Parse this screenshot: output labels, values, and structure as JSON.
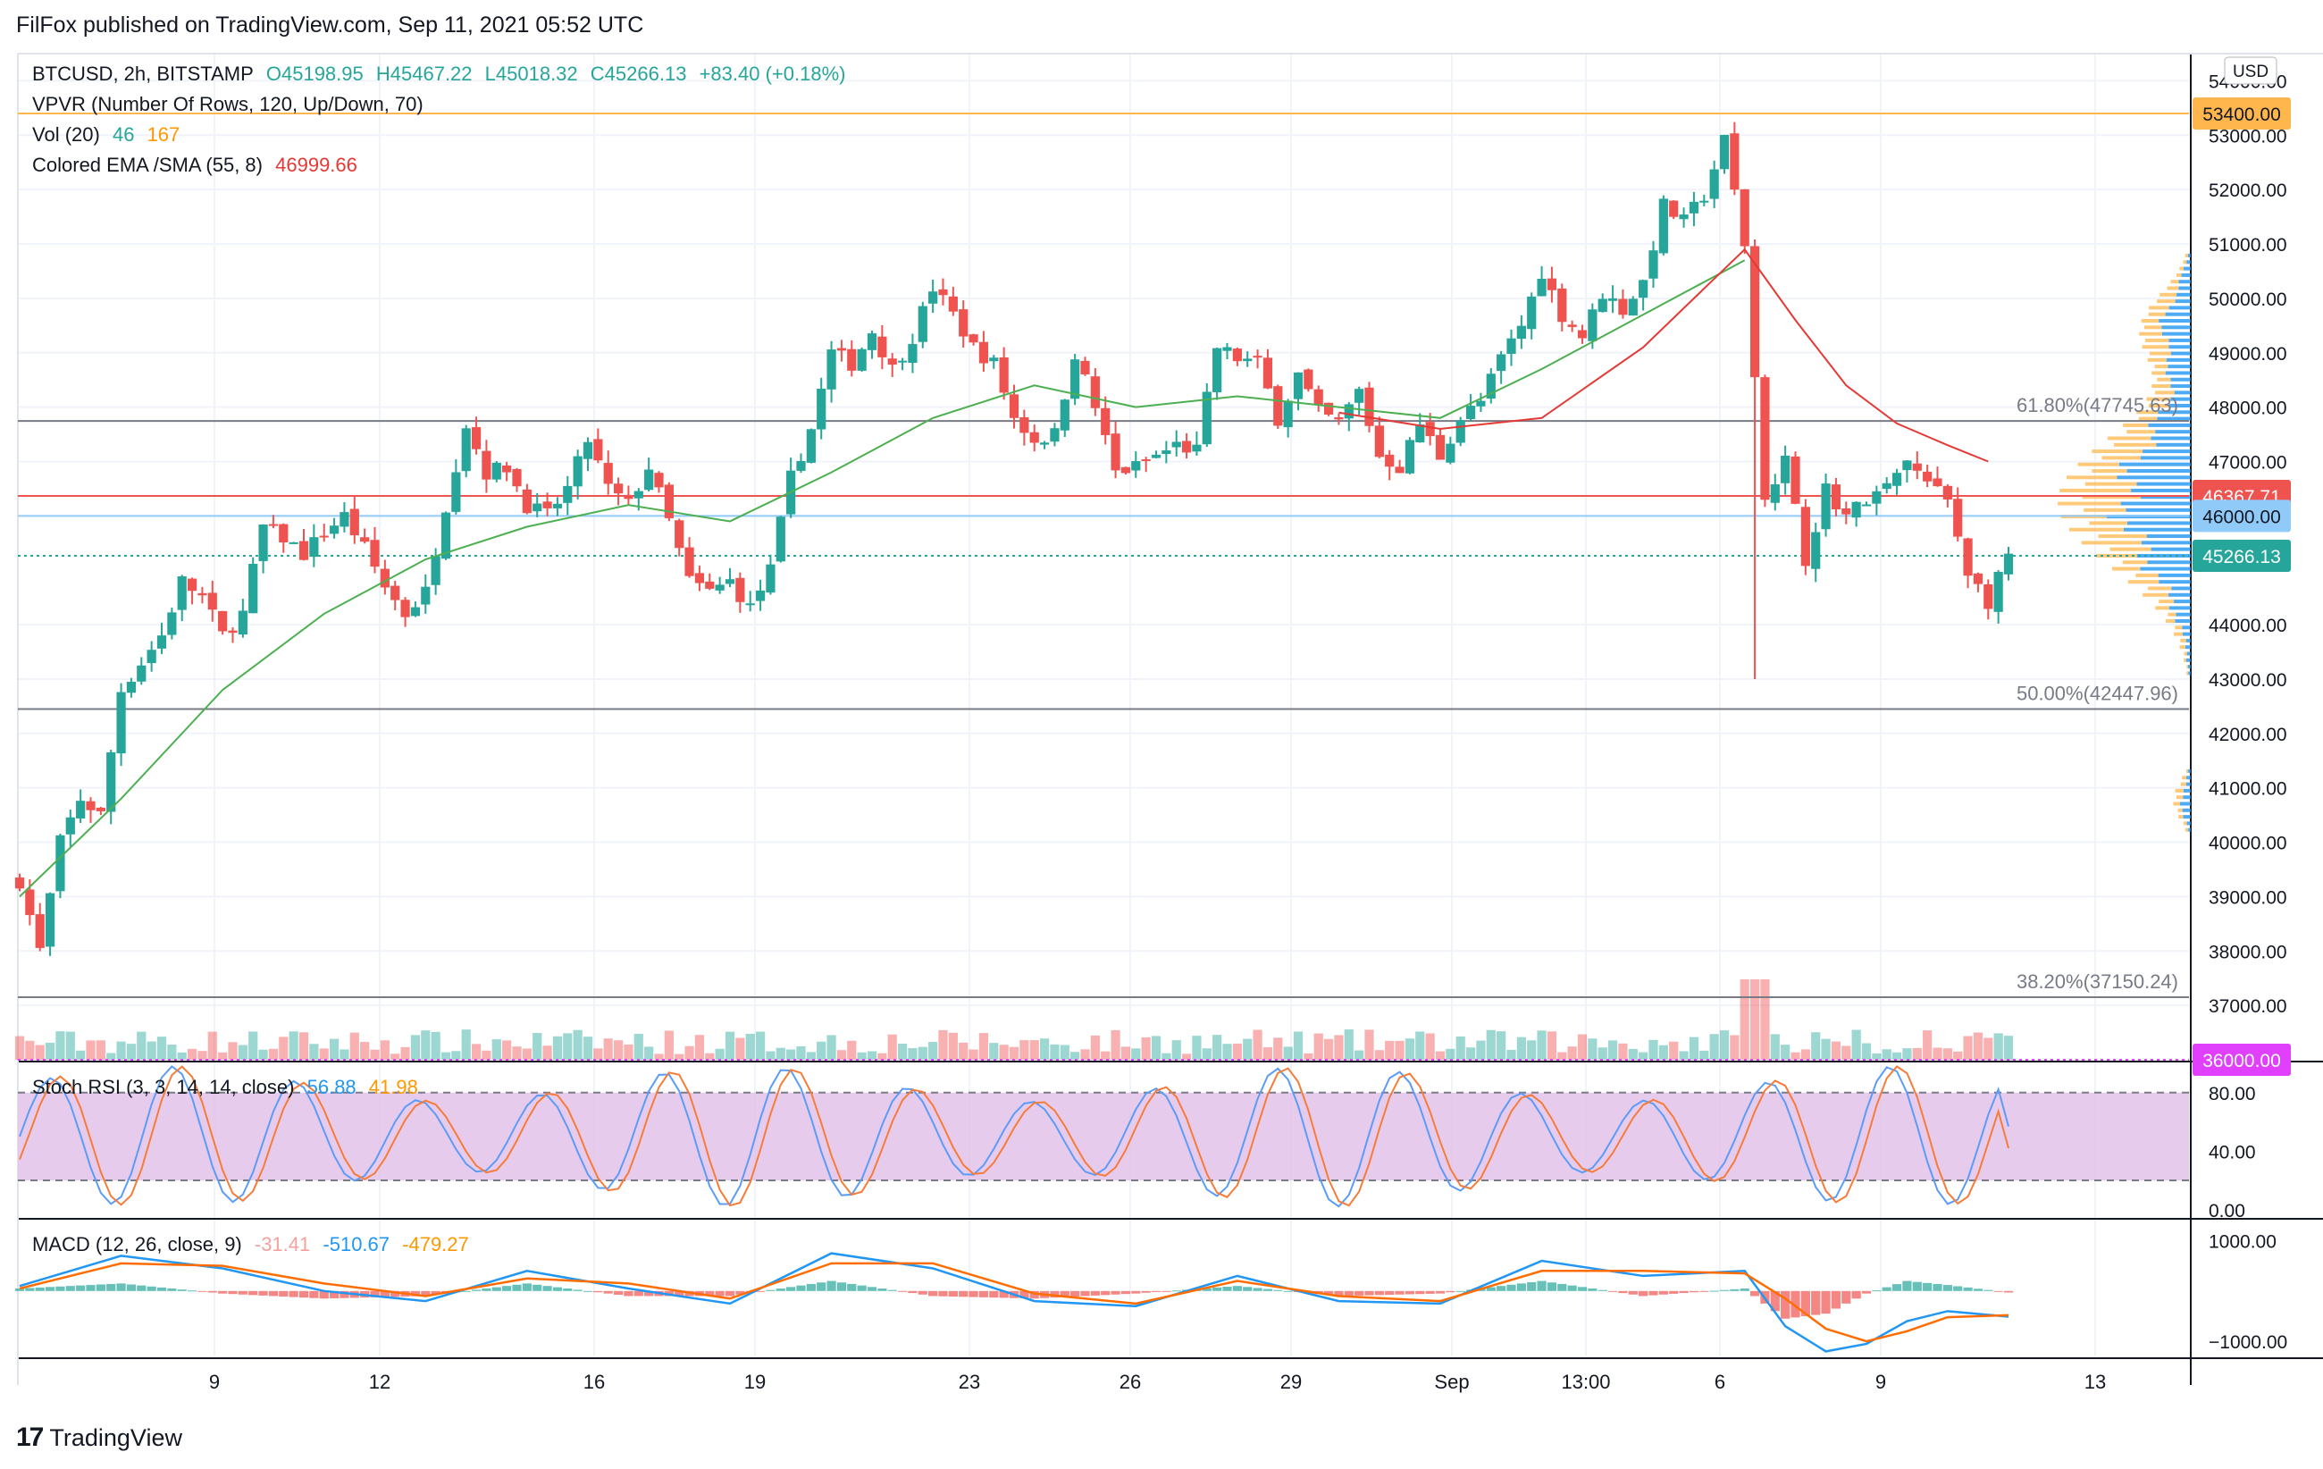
{
  "header": {
    "publish_line": "FilFox published on TradingView.com, Sep 11, 2021 05:52 UTC"
  },
  "footer": {
    "logo_mark": "17",
    "brand": "TradingView"
  },
  "legend": {
    "symbol": "BTCUSD, 2h, BITSTAMP",
    "open": "O45198.95",
    "high": "H45467.22",
    "low": "L45018.32",
    "close": "C45266.13",
    "change": "+83.40 (+0.18%)",
    "vpvr": "VPVR (Number Of Rows, 120, Up/Down, 70)",
    "vol_label": "Vol (20)",
    "vol_value": "46",
    "vol_ma": "167",
    "ema_label": "Colored EMA /SMA (55, 8)",
    "ema_value": "46999.66",
    "stoch_label": "Stoch RSI (3, 3, 14, 14, close)",
    "stoch_k": "56.88",
    "stoch_d": "41.98",
    "macd_label": "MACD (12, 26, close, 9)",
    "macd_hist": "-31.41",
    "macd_line": "-510.67",
    "macd_signal": "-479.27"
  },
  "colors": {
    "up": "#26a69a",
    "down": "#ef5350",
    "ema": "#e53935",
    "sma": "#4caf50",
    "stoch_k": "#5b9cf6",
    "stoch_d": "#f57c3a",
    "stoch_band": "#e1bee7",
    "macd_line": "#2196f3",
    "macd_signal": "#ff6d00",
    "vpvr_up": "#2196f3",
    "vpvr_down": "#ffb74d",
    "fib_line": "#787b86"
  },
  "chart_data": {
    "type": "candlestick",
    "symbol": "BTCUSD",
    "interval": "2h",
    "exchange": "BITSTAMP",
    "currency": "USD",
    "ylim": [
      36000,
      54500
    ],
    "y_ticks": [
      {
        "value": 37000,
        "label": "37000.00"
      },
      {
        "value": 38000,
        "label": "38000.00"
      },
      {
        "value": 39000,
        "label": "39000.00"
      },
      {
        "value": 40000,
        "label": "40000.00"
      },
      {
        "value": 41000,
        "label": "41000.00"
      },
      {
        "value": 42000,
        "label": "42000.00"
      },
      {
        "value": 43000,
        "label": "43000.00"
      },
      {
        "value": 44000,
        "label": "44000.00"
      },
      {
        "value": 47000,
        "label": "47000.00"
      },
      {
        "value": 48000,
        "label": "48000.00"
      },
      {
        "value": 49000,
        "label": "49000.00"
      },
      {
        "value": 50000,
        "label": "50000.00"
      },
      {
        "value": 51000,
        "label": "51000.00"
      },
      {
        "value": 52000,
        "label": "52000.00"
      },
      {
        "value": 53000,
        "label": "53000.00"
      },
      {
        "value": 54000,
        "label": "54000.00"
      }
    ],
    "x_ticks": [
      "9",
      "12",
      "16",
      "19",
      "23",
      "26",
      "29",
      "Sep",
      "13:00",
      "6",
      "9",
      "13"
    ],
    "price_path": [
      [
        0,
        39300
      ],
      [
        2,
        38000
      ],
      [
        4,
        40000
      ],
      [
        6,
        40800
      ],
      [
        8,
        40500
      ],
      [
        10,
        42800
      ],
      [
        12,
        43300
      ],
      [
        14,
        43800
      ],
      [
        16,
        44800
      ],
      [
        18,
        44500
      ],
      [
        20,
        43800
      ],
      [
        22,
        44200
      ],
      [
        24,
        45800
      ],
      [
        26,
        45600
      ],
      [
        28,
        45300
      ],
      [
        30,
        45700
      ],
      [
        32,
        46000
      ],
      [
        34,
        45400
      ],
      [
        36,
        44700
      ],
      [
        38,
        44200
      ],
      [
        40,
        44600
      ],
      [
        42,
        46200
      ],
      [
        44,
        47700
      ],
      [
        46,
        46800
      ],
      [
        48,
        46900
      ],
      [
        50,
        46200
      ],
      [
        52,
        46000
      ],
      [
        54,
        46500
      ],
      [
        56,
        47400
      ],
      [
        58,
        46500
      ],
      [
        60,
        46200
      ],
      [
        62,
        46900
      ],
      [
        64,
        45900
      ],
      [
        66,
        44800
      ],
      [
        68,
        44600
      ],
      [
        70,
        44800
      ],
      [
        72,
        44300
      ],
      [
        74,
        45000
      ],
      [
        76,
        46700
      ],
      [
        78,
        47600
      ],
      [
        80,
        49000
      ],
      [
        82,
        48800
      ],
      [
        84,
        49400
      ],
      [
        86,
        48700
      ],
      [
        88,
        49300
      ],
      [
        90,
        50200
      ],
      [
        92,
        49700
      ],
      [
        94,
        49100
      ],
      [
        96,
        48800
      ],
      [
        98,
        47800
      ],
      [
        100,
        47400
      ],
      [
        102,
        47500
      ],
      [
        104,
        49000
      ],
      [
        106,
        48000
      ],
      [
        108,
        46800
      ],
      [
        110,
        46900
      ],
      [
        112,
        47100
      ],
      [
        114,
        47300
      ],
      [
        116,
        47200
      ],
      [
        118,
        49100
      ],
      [
        120,
        48900
      ],
      [
        122,
        48800
      ],
      [
        124,
        47800
      ],
      [
        126,
        48600
      ],
      [
        128,
        47900
      ],
      [
        130,
        47700
      ],
      [
        132,
        48300
      ],
      [
        134,
        47100
      ],
      [
        136,
        46900
      ],
      [
        138,
        47700
      ],
      [
        140,
        47100
      ],
      [
        142,
        47800
      ],
      [
        144,
        48100
      ],
      [
        146,
        48900
      ],
      [
        148,
        49500
      ],
      [
        150,
        50500
      ],
      [
        152,
        49700
      ],
      [
        154,
        49300
      ],
      [
        156,
        50100
      ],
      [
        158,
        49800
      ],
      [
        160,
        50300
      ],
      [
        162,
        51700
      ],
      [
        164,
        51400
      ],
      [
        166,
        51900
      ],
      [
        168,
        52900
      ],
      [
        170,
        51000
      ],
      [
        172,
        46400
      ],
      [
        174,
        47000
      ],
      [
        176,
        45200
      ],
      [
        178,
        46500
      ],
      [
        180,
        46000
      ],
      [
        182,
        46300
      ],
      [
        184,
        46500
      ],
      [
        186,
        47000
      ],
      [
        188,
        46600
      ],
      [
        190,
        46300
      ],
      [
        192,
        45000
      ],
      [
        194,
        44400
      ],
      [
        196,
        45270
      ]
    ],
    "ema_path": [
      [
        130,
        47900
      ],
      [
        140,
        47600
      ],
      [
        150,
        47800
      ],
      [
        160,
        49100
      ],
      [
        165,
        50000
      ],
      [
        170,
        50900
      ],
      [
        175,
        49600
      ],
      [
        180,
        48400
      ],
      [
        185,
        47700
      ],
      [
        190,
        47300
      ],
      [
        194,
        46999.66
      ]
    ],
    "sma_path": [
      [
        0,
        39000
      ],
      [
        10,
        40800
      ],
      [
        20,
        42800
      ],
      [
        30,
        44200
      ],
      [
        40,
        45200
      ],
      [
        50,
        45800
      ],
      [
        60,
        46200
      ],
      [
        70,
        45900
      ],
      [
        80,
        46800
      ],
      [
        90,
        47800
      ],
      [
        100,
        48400
      ],
      [
        110,
        48000
      ],
      [
        120,
        48200
      ],
      [
        130,
        48000
      ],
      [
        140,
        47800
      ],
      [
        150,
        48700
      ],
      [
        160,
        49700
      ],
      [
        170,
        50700
      ]
    ],
    "price_lines": [
      {
        "name": "resistance",
        "value": 53400,
        "label": "53400.00",
        "color": "#ffb74d",
        "tag_bg": "#ffb74d"
      },
      {
        "name": "fib-61.8",
        "value": 47745.63,
        "label": "61.80%(47745.63)",
        "color": "#787b86"
      },
      {
        "name": "ema-level",
        "value": 46367.71,
        "label": "46367.71",
        "color": "#ef5350",
        "tag_bg": "#ef5350"
      },
      {
        "name": "support",
        "value": 46000,
        "label": "46000.00",
        "color": "#90caf9",
        "tag_bg": "#90caf9"
      },
      {
        "name": "last-price",
        "value": 45266.13,
        "label": "45266.13",
        "color": "#26a69a",
        "tag_bg": "#26a69a",
        "dotted": true
      },
      {
        "name": "fib-50",
        "value": 42447.96,
        "label": "50.00%(42447.96)",
        "color": "#787b86"
      },
      {
        "name": "fib-38.2",
        "value": 37150.24,
        "label": "38.20%(37150.24)",
        "color": "#787b86"
      },
      {
        "name": "support-36k",
        "value": 36000,
        "label": "36000.00",
        "color": "#e040fb",
        "tag_bg": "#e040fb",
        "dotted": true
      }
    ],
    "stoch_rsi": {
      "ylim": [
        0,
        100
      ],
      "upper_band": 80,
      "lower_band": 20,
      "ticks": [
        {
          "value": 80,
          "label": "80.00"
        },
        {
          "value": 40,
          "label": "40.00"
        },
        {
          "value": 0,
          "label": "0.00"
        }
      ],
      "k_last": 56.88,
      "d_last": 41.98
    },
    "macd": {
      "ylim": [
        -1300,
        1400
      ],
      "ticks": [
        {
          "value": 1000,
          "label": "1000.00"
        },
        {
          "value": -1000,
          "label": "−1000.00"
        }
      ],
      "macd_path": [
        [
          0,
          100
        ],
        [
          10,
          700
        ],
        [
          20,
          450
        ],
        [
          30,
          0
        ],
        [
          40,
          -200
        ],
        [
          50,
          400
        ],
        [
          60,
          50
        ],
        [
          70,
          -250
        ],
        [
          80,
          750
        ],
        [
          90,
          450
        ],
        [
          100,
          -200
        ],
        [
          110,
          -300
        ],
        [
          120,
          300
        ],
        [
          130,
          -200
        ],
        [
          140,
          -250
        ],
        [
          150,
          600
        ],
        [
          160,
          300
        ],
        [
          170,
          400
        ],
        [
          174,
          -700
        ],
        [
          178,
          -1200
        ],
        [
          182,
          -1050
        ],
        [
          186,
          -600
        ],
        [
          190,
          -400
        ],
        [
          196,
          -510
        ]
      ],
      "signal_path": [
        [
          0,
          50
        ],
        [
          10,
          550
        ],
        [
          20,
          500
        ],
        [
          30,
          150
        ],
        [
          40,
          -100
        ],
        [
          50,
          250
        ],
        [
          60,
          150
        ],
        [
          70,
          -150
        ],
        [
          80,
          550
        ],
        [
          90,
          550
        ],
        [
          100,
          -50
        ],
        [
          110,
          -250
        ],
        [
          120,
          200
        ],
        [
          130,
          -100
        ],
        [
          140,
          -200
        ],
        [
          150,
          400
        ],
        [
          160,
          400
        ],
        [
          170,
          350
        ],
        [
          174,
          -150
        ],
        [
          178,
          -750
        ],
        [
          182,
          -1000
        ],
        [
          186,
          -800
        ],
        [
          190,
          -520
        ],
        [
          196,
          -480
        ]
      ],
      "macd_last": -510.67,
      "signal_last": -479.27,
      "hist_last": -31.41
    },
    "volume_ma_last": 167,
    "volume_last": 46
  }
}
